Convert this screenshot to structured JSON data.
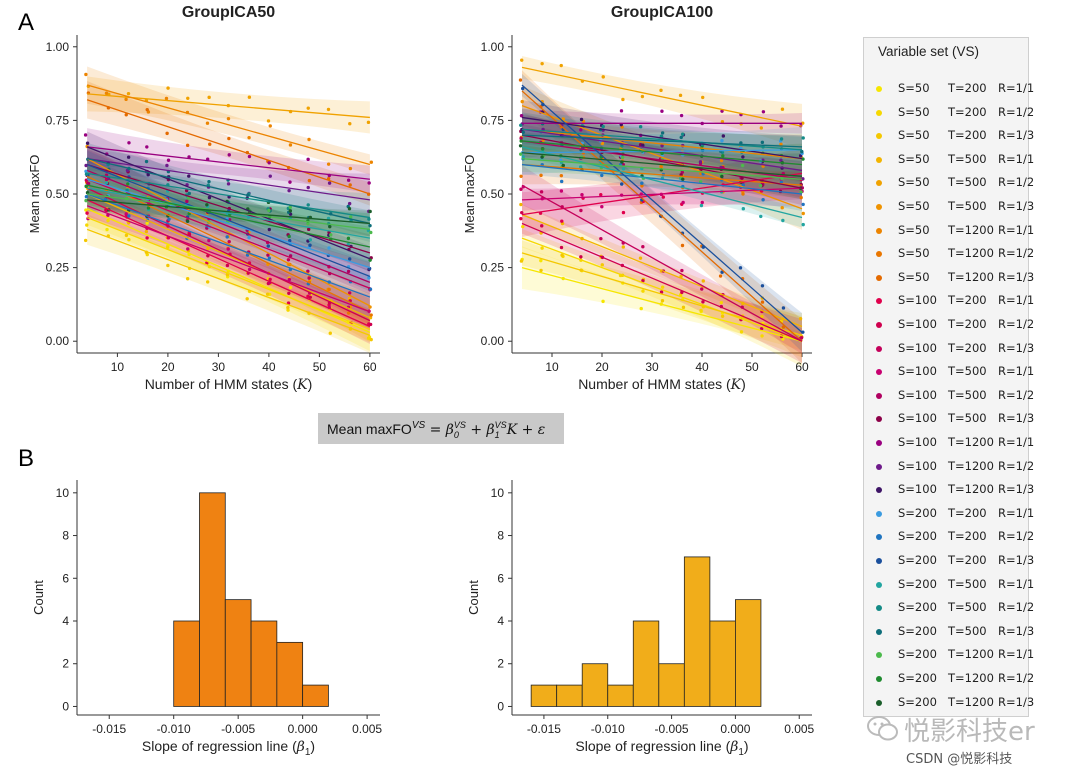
{
  "panel_labels": {
    "a": "A",
    "b": "B"
  },
  "equation": {
    "lhs": "Mean maxFO",
    "sup1": "VS",
    "eq": " = β",
    "sub0": "0",
    "sup2": "VS",
    "plus": " + β",
    "sub1": "1",
    "sup3": "VS",
    "tail": "K + ε"
  },
  "legend": {
    "title": "Variable set (VS)",
    "items": [
      {
        "s": "S=50",
        "t": "T=200",
        "r": "R=1/1",
        "color": "#f6e600"
      },
      {
        "s": "S=50",
        "t": "T=200",
        "r": "R=1/2",
        "color": "#f6d800"
      },
      {
        "s": "S=50",
        "t": "T=200",
        "r": "R=1/3",
        "color": "#f4c800"
      },
      {
        "s": "S=50",
        "t": "T=500",
        "r": "R=1/1",
        "color": "#f2b400"
      },
      {
        "s": "S=50",
        "t": "T=500",
        "r": "R=1/2",
        "color": "#f0a200"
      },
      {
        "s": "S=50",
        "t": "T=500",
        "r": "R=1/3",
        "color": "#ef9300"
      },
      {
        "s": "S=50",
        "t": "T=1200",
        "r": "R=1/1",
        "color": "#ec8400"
      },
      {
        "s": "S=50",
        "t": "T=1200",
        "r": "R=1/2",
        "color": "#e97600"
      },
      {
        "s": "S=50",
        "t": "T=1200",
        "r": "R=1/3",
        "color": "#e46a00"
      },
      {
        "s": "S=100",
        "t": "T=200",
        "r": "R=1/1",
        "color": "#e0004c"
      },
      {
        "s": "S=100",
        "t": "T=200",
        "r": "R=1/2",
        "color": "#cf004e"
      },
      {
        "s": "S=100",
        "t": "T=200",
        "r": "R=1/3",
        "color": "#c4005a"
      },
      {
        "s": "S=100",
        "t": "T=500",
        "r": "R=1/1",
        "color": "#c80070"
      },
      {
        "s": "S=100",
        "t": "T=500",
        "r": "R=1/2",
        "color": "#b00060"
      },
      {
        "s": "S=100",
        "t": "T=500",
        "r": "R=1/3",
        "color": "#8c0048"
      },
      {
        "s": "S=100",
        "t": "T=1200",
        "r": "R=1/1",
        "color": "#9a0080"
      },
      {
        "s": "S=100",
        "t": "T=1200",
        "r": "R=1/2",
        "color": "#6e1a8a"
      },
      {
        "s": "S=100",
        "t": "T=1200",
        "r": "R=1/3",
        "color": "#3e1466"
      },
      {
        "s": "S=200",
        "t": "T=200",
        "r": "R=1/1",
        "color": "#3a9be0"
      },
      {
        "s": "S=200",
        "t": "T=200",
        "r": "R=1/2",
        "color": "#1f74c0"
      },
      {
        "s": "S=200",
        "t": "T=200",
        "r": "R=1/3",
        "color": "#1a4f9c"
      },
      {
        "s": "S=200",
        "t": "T=500",
        "r": "R=1/1",
        "color": "#22a5a0"
      },
      {
        "s": "S=200",
        "t": "T=500",
        "r": "R=1/2",
        "color": "#138a86"
      },
      {
        "s": "S=200",
        "t": "T=500",
        "r": "R=1/3",
        "color": "#0d6e7a"
      },
      {
        "s": "S=200",
        "t": "T=1200",
        "r": "R=1/1",
        "color": "#4cba4c"
      },
      {
        "s": "S=200",
        "t": "T=1200",
        "r": "R=1/2",
        "color": "#1f8a2f"
      },
      {
        "s": "S=200",
        "t": "T=1200",
        "r": "R=1/3",
        "color": "#1a5e2a"
      }
    ]
  },
  "watermark": {
    "text": "悦影科技er",
    "icon": "wechat-icon"
  },
  "credit": "CSDN @悦影科技",
  "chart_data": [
    {
      "id": "a-left",
      "type": "scatter",
      "title": "GroupICA50",
      "xlabel": "Number of HMM states (K)",
      "ylabel": "Mean maxFO",
      "xlim": [
        2,
        62
      ],
      "ylim": [
        -0.04,
        1.04
      ],
      "xticks": [
        10,
        20,
        30,
        40,
        50,
        60
      ],
      "yticks": [
        "0.00",
        "0.25",
        "0.50",
        "0.75",
        "1.00"
      ],
      "x": [
        4,
        8,
        12,
        16,
        20,
        24,
        28,
        32,
        36,
        40,
        44,
        48,
        52,
        56,
        60
      ],
      "series_lines": [
        {
          "legend": 0,
          "y0": 0.45,
          "y1": 0.03
        },
        {
          "legend": 1,
          "y0": 0.42,
          "y1": 0.04
        },
        {
          "legend": 2,
          "y0": 0.38,
          "y1": 0.02
        },
        {
          "legend": 3,
          "y0": 0.5,
          "y1": 0.08
        },
        {
          "legend": 4,
          "y0": 0.84,
          "y1": 0.76
        },
        {
          "legend": 5,
          "y0": 0.62,
          "y1": 0.12
        },
        {
          "legend": 6,
          "y0": 0.87,
          "y1": 0.6
        },
        {
          "legend": 7,
          "y0": 0.56,
          "y1": 0.1
        },
        {
          "legend": 8,
          "y0": 0.82,
          "y1": 0.5
        },
        {
          "legend": 9,
          "y0": 0.48,
          "y1": 0.05
        },
        {
          "legend": 10,
          "y0": 0.52,
          "y1": 0.07
        },
        {
          "legend": 11,
          "y0": 0.55,
          "y1": 0.18
        },
        {
          "legend": 12,
          "y0": 0.46,
          "y1": 0.1
        },
        {
          "legend": 13,
          "y0": 0.58,
          "y1": 0.2
        },
        {
          "legend": 14,
          "y0": 0.6,
          "y1": 0.3
        },
        {
          "legend": 15,
          "y0": 0.66,
          "y1": 0.55
        },
        {
          "legend": 16,
          "y0": 0.62,
          "y1": 0.48
        },
        {
          "legend": 17,
          "y0": 0.66,
          "y1": 0.28
        },
        {
          "legend": 18,
          "y0": 0.55,
          "y1": 0.25
        },
        {
          "legend": 19,
          "y0": 0.5,
          "y1": 0.15
        },
        {
          "legend": 20,
          "y0": 0.6,
          "y1": 0.22
        },
        {
          "legend": 21,
          "y0": 0.52,
          "y1": 0.35
        },
        {
          "legend": 22,
          "y0": 0.57,
          "y1": 0.42
        },
        {
          "legend": 23,
          "y0": 0.62,
          "y1": 0.4
        },
        {
          "legend": 24,
          "y0": 0.5,
          "y1": 0.38
        },
        {
          "legend": 25,
          "y0": 0.53,
          "y1": 0.32
        },
        {
          "legend": 26,
          "y0": 0.48,
          "y1": 0.4
        }
      ]
    },
    {
      "id": "a-right",
      "type": "scatter",
      "title": "GroupICA100",
      "xlabel": "Number of HMM states (K)",
      "ylabel": "Mean maxFO",
      "xlim": [
        2,
        62
      ],
      "ylim": [
        -0.04,
        1.04
      ],
      "xticks": [
        10,
        20,
        30,
        40,
        50,
        60
      ],
      "yticks": [
        "0.00",
        "0.25",
        "0.50",
        "0.75",
        "1.00"
      ],
      "x": [
        4,
        8,
        12,
        16,
        20,
        24,
        28,
        32,
        36,
        40,
        44,
        48,
        52,
        56,
        60
      ],
      "series_lines": [
        {
          "legend": 0,
          "y0": 0.25,
          "y1": 0.0
        },
        {
          "legend": 1,
          "y0": 0.35,
          "y1": 0.0
        },
        {
          "legend": 2,
          "y0": 0.3,
          "y1": 0.02
        },
        {
          "legend": 3,
          "y0": 0.43,
          "y1": 0.05
        },
        {
          "legend": 4,
          "y0": 0.93,
          "y1": 0.73
        },
        {
          "legend": 5,
          "y0": 0.8,
          "y1": 0.45
        },
        {
          "legend": 6,
          "y0": 0.72,
          "y1": 0.62
        },
        {
          "legend": 7,
          "y0": 0.6,
          "y1": 0.53
        },
        {
          "legend": 8,
          "y0": 0.85,
          "y1": 0.0
        },
        {
          "legend": 9,
          "y0": 0.43,
          "y1": 0.57
        },
        {
          "legend": 10,
          "y0": 0.4,
          "y1": 0.0
        },
        {
          "legend": 11,
          "y0": 0.53,
          "y1": 0.0
        },
        {
          "legend": 12,
          "y0": 0.48,
          "y1": 0.52
        },
        {
          "legend": 13,
          "y0": 0.68,
          "y1": 0.55
        },
        {
          "legend": 14,
          "y0": 0.7,
          "y1": 0.52
        },
        {
          "legend": 15,
          "y0": 0.74,
          "y1": 0.74
        },
        {
          "legend": 16,
          "y0": 0.72,
          "y1": 0.58
        },
        {
          "legend": 17,
          "y0": 0.76,
          "y1": 0.62
        },
        {
          "legend": 18,
          "y0": 0.64,
          "y1": 0.65
        },
        {
          "legend": 19,
          "y0": 0.6,
          "y1": 0.5
        },
        {
          "legend": 20,
          "y0": 0.87,
          "y1": 0.03
        },
        {
          "legend": 21,
          "y0": 0.66,
          "y1": 0.42
        },
        {
          "legend": 22,
          "y0": 0.72,
          "y1": 0.65
        },
        {
          "legend": 23,
          "y0": 0.7,
          "y1": 0.66
        },
        {
          "legend": 24,
          "y0": 0.62,
          "y1": 0.55
        },
        {
          "legend": 25,
          "y0": 0.68,
          "y1": 0.6
        },
        {
          "legend": 26,
          "y0": 0.64,
          "y1": 0.56
        }
      ]
    },
    {
      "id": "b-left",
      "type": "bar",
      "subtype": "histogram",
      "xlabel": "Slope of regression line (β1)",
      "ylabel": "Count",
      "xlim": [
        -0.0175,
        0.006
      ],
      "ylim": [
        -0.4,
        10.6
      ],
      "xticks": [
        "-0.015",
        "-0.010",
        "-0.005",
        "0.000",
        "0.005"
      ],
      "yticks": [
        "0",
        "2",
        "4",
        "6",
        "8",
        "10"
      ],
      "bin_edges": [
        -0.01,
        -0.008,
        -0.006,
        -0.004,
        -0.002,
        0.0,
        0.002
      ],
      "values": [
        4,
        10,
        5,
        4,
        3,
        1
      ],
      "color": "#ef8212"
    },
    {
      "id": "b-right",
      "type": "bar",
      "subtype": "histogram",
      "xlabel": "Slope of regression line (β1)",
      "ylabel": "Count",
      "xlim": [
        -0.0175,
        0.006
      ],
      "ylim": [
        -0.4,
        10.6
      ],
      "xticks": [
        "-0.015",
        "-0.010",
        "-0.005",
        "0.000",
        "0.005"
      ],
      "yticks": [
        "0",
        "2",
        "4",
        "6",
        "8",
        "10"
      ],
      "bin_edges": [
        -0.016,
        -0.014,
        -0.012,
        -0.01,
        -0.008,
        -0.006,
        -0.004,
        -0.002,
        0.0,
        0.002
      ],
      "values": [
        1,
        1,
        2,
        1,
        4,
        2,
        7,
        4,
        5
      ],
      "color": "#f1ad1a"
    }
  ]
}
